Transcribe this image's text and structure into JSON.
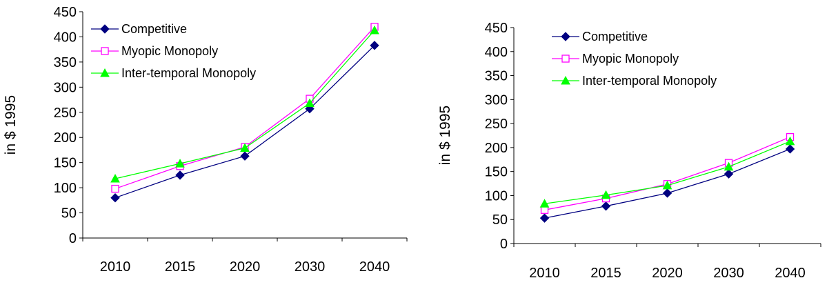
{
  "chart_data": [
    {
      "type": "line",
      "categories": [
        "2010",
        "2015",
        "2020",
        "2030",
        "2040"
      ],
      "ylabel": "in $ 1995",
      "xlabel": "",
      "ylim": [
        0,
        450
      ],
      "yticks": [
        0,
        50,
        100,
        150,
        200,
        250,
        300,
        350,
        400,
        450
      ],
      "legend_position": "top-left",
      "grid": false,
      "series": [
        {
          "name": "Competitive",
          "values": [
            80,
            125,
            163,
            257,
            383
          ],
          "color": "#000080",
          "marker": "diamond"
        },
        {
          "name": "Myopic Monopoly",
          "values": [
            98,
            143,
            181,
            277,
            420
          ],
          "color": "#ff00ff",
          "marker": "square-open"
        },
        {
          "name": "Inter-temporal Monopoly",
          "values": [
            118,
            148,
            179,
            268,
            413
          ],
          "color": "#00ff00",
          "marker": "triangle"
        }
      ]
    },
    {
      "type": "line",
      "categories": [
        "2010",
        "2015",
        "2020",
        "2030",
        "2040"
      ],
      "ylabel": "in $ 1995",
      "xlabel": "",
      "ylim": [
        0,
        450
      ],
      "yticks": [
        0,
        50,
        100,
        150,
        200,
        250,
        300,
        350,
        400,
        450
      ],
      "legend_position": "top-left",
      "grid": false,
      "series": [
        {
          "name": "Competitive",
          "values": [
            53,
            78,
            105,
            145,
            197
          ],
          "color": "#000080",
          "marker": "diamond"
        },
        {
          "name": "Myopic Monopoly",
          "values": [
            70,
            94,
            124,
            168,
            222
          ],
          "color": "#ff00ff",
          "marker": "square-open"
        },
        {
          "name": "Inter-temporal Monopoly",
          "values": [
            83,
            101,
            121,
            160,
            213
          ],
          "color": "#00ff00",
          "marker": "triangle"
        }
      ]
    }
  ]
}
